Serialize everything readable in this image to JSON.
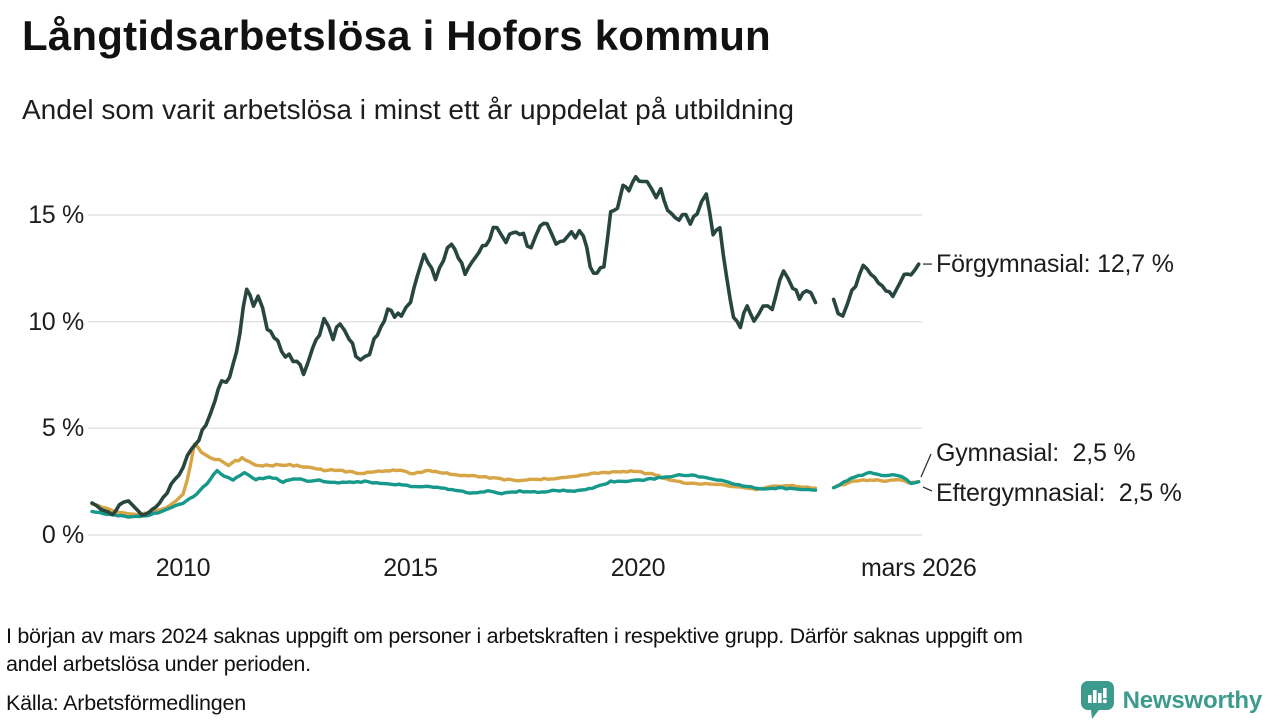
{
  "header": {
    "title": "Långtidsarbetslösa i Hofors kommun",
    "subtitle": "Andel som varit arbetslösa i minst ett år uppdelat på utbildning"
  },
  "footer": {
    "note_line1": "I början av mars 2024 saknas uppgift om personer i arbetskraften i respektive grupp. Därför saknas uppgift om",
    "note_line2": "andel arbetslösa under perioden.",
    "source": "Källa: Arbetsförmedlingen",
    "brand": {
      "name": "Newsworthy",
      "color": "#3d9b8e",
      "icon": "bar-chart-speech-bubble-icon"
    }
  },
  "chart_data": {
    "type": "line",
    "unit": "%",
    "grid": true,
    "text_color": "#1d1d1d",
    "grid_color": "#e2e2e2",
    "leader_color": "#333333",
    "x_axis": {
      "range": [
        2007.95,
        2026.17
      ],
      "ticks": [
        {
          "x": 2010,
          "label": "2010"
        },
        {
          "x": 2015,
          "label": "2015"
        },
        {
          "x": 2020,
          "label": "2020"
        },
        {
          "x": 2026.17,
          "label": "mars 2026"
        }
      ]
    },
    "y_axis": {
      "range": [
        0,
        17.3
      ],
      "ticks": [
        {
          "v": 0,
          "label": "0 %"
        },
        {
          "v": 5,
          "label": "5 %"
        },
        {
          "v": 10,
          "label": "10 %"
        },
        {
          "v": 15,
          "label": "15 %"
        }
      ]
    },
    "data_gap_note": "no data early March 2024",
    "series": [
      {
        "name": "Gymnasial",
        "color": "#d7a545",
        "end_value_pct": 2.5,
        "end_label": "Gymnasial:  2,5 %",
        "jitter": 0.07,
        "points": [
          [
            2008,
            1.45
          ],
          [
            2008.3,
            1.25
          ],
          [
            2008.6,
            1.05
          ],
          [
            2009,
            0.95
          ],
          [
            2009.4,
            1.1
          ],
          [
            2009.7,
            1.35
          ],
          [
            2010,
            1.9
          ],
          [
            2010.1,
            2.6
          ],
          [
            2010.25,
            4.3
          ],
          [
            2010.4,
            3.9
          ],
          [
            2010.6,
            3.6
          ],
          [
            2010.8,
            3.5
          ],
          [
            2011,
            3.3
          ],
          [
            2011.3,
            3.6
          ],
          [
            2011.6,
            3.3
          ],
          [
            2011.9,
            3.25
          ],
          [
            2012.2,
            3.3
          ],
          [
            2012.5,
            3.25
          ],
          [
            2012.8,
            3.15
          ],
          [
            2013.1,
            3.05
          ],
          [
            2013.5,
            3.0
          ],
          [
            2013.9,
            2.9
          ],
          [
            2014.3,
            3.0
          ],
          [
            2014.7,
            3.05
          ],
          [
            2015,
            2.9
          ],
          [
            2015.4,
            3.0
          ],
          [
            2015.8,
            2.9
          ],
          [
            2016.1,
            2.8
          ],
          [
            2016.5,
            2.75
          ],
          [
            2016.9,
            2.65
          ],
          [
            2017.3,
            2.55
          ],
          [
            2017.7,
            2.6
          ],
          [
            2018.1,
            2.65
          ],
          [
            2018.5,
            2.75
          ],
          [
            2018.9,
            2.85
          ],
          [
            2019.2,
            2.9
          ],
          [
            2019.6,
            3.0
          ],
          [
            2020,
            2.95
          ],
          [
            2020.3,
            2.85
          ],
          [
            2020.7,
            2.6
          ],
          [
            2021,
            2.45
          ],
          [
            2021.4,
            2.4
          ],
          [
            2021.8,
            2.35
          ],
          [
            2022.2,
            2.25
          ],
          [
            2022.6,
            2.15
          ],
          [
            2023,
            2.3
          ],
          [
            2023.4,
            2.3
          ],
          [
            2023.9,
            2.2
          ],
          [
            2024.05,
            null
          ],
          [
            2024.3,
            2.25
          ],
          [
            2024.55,
            2.4
          ],
          [
            2024.8,
            2.55
          ],
          [
            2025.1,
            2.6
          ],
          [
            2025.4,
            2.55
          ],
          [
            2025.7,
            2.6
          ],
          [
            2025.95,
            2.45
          ],
          [
            2026.17,
            2.5
          ]
        ]
      },
      {
        "name": "Eftergymnasial",
        "color": "#16998a",
        "end_value_pct": 2.5,
        "end_label": "Eftergymnasial:  2,5 %",
        "jitter": 0.07,
        "points": [
          [
            2008,
            1.1
          ],
          [
            2008.4,
            0.95
          ],
          [
            2008.8,
            0.85
          ],
          [
            2009.2,
            0.9
          ],
          [
            2009.6,
            1.15
          ],
          [
            2010,
            1.5
          ],
          [
            2010.3,
            1.9
          ],
          [
            2010.6,
            2.6
          ],
          [
            2010.75,
            3.05
          ],
          [
            2010.9,
            2.75
          ],
          [
            2011.1,
            2.6
          ],
          [
            2011.35,
            2.9
          ],
          [
            2011.6,
            2.6
          ],
          [
            2011.9,
            2.75
          ],
          [
            2012.2,
            2.5
          ],
          [
            2012.5,
            2.65
          ],
          [
            2012.8,
            2.5
          ],
          [
            2013,
            2.55
          ],
          [
            2013.5,
            2.45
          ],
          [
            2014,
            2.5
          ],
          [
            2014.5,
            2.4
          ],
          [
            2015,
            2.3
          ],
          [
            2015.5,
            2.25
          ],
          [
            2016,
            2.1
          ],
          [
            2016.3,
            1.95
          ],
          [
            2016.7,
            2.05
          ],
          [
            2017,
            1.95
          ],
          [
            2017.4,
            2.05
          ],
          [
            2017.8,
            2.0
          ],
          [
            2018.2,
            2.1
          ],
          [
            2018.6,
            2.05
          ],
          [
            2019,
            2.2
          ],
          [
            2019.4,
            2.5
          ],
          [
            2019.8,
            2.55
          ],
          [
            2020.2,
            2.6
          ],
          [
            2020.6,
            2.7
          ],
          [
            2020.9,
            2.85
          ],
          [
            2021.1,
            2.8
          ],
          [
            2021.5,
            2.7
          ],
          [
            2021.9,
            2.5
          ],
          [
            2022.3,
            2.3
          ],
          [
            2022.75,
            2.15
          ],
          [
            2023.1,
            2.2
          ],
          [
            2023.5,
            2.15
          ],
          [
            2023.9,
            2.1
          ],
          [
            2024.05,
            null
          ],
          [
            2024.3,
            2.2
          ],
          [
            2024.6,
            2.55
          ],
          [
            2024.85,
            2.8
          ],
          [
            2025.1,
            2.9
          ],
          [
            2025.35,
            2.8
          ],
          [
            2025.6,
            2.85
          ],
          [
            2025.8,
            2.75
          ],
          [
            2026,
            2.4
          ],
          [
            2026.17,
            2.5
          ]
        ]
      },
      {
        "name": "Förgymnasial",
        "color": "#27463f",
        "end_value_pct": 12.7,
        "end_label": "Förgymnasial: 12,7 %",
        "jitter": 0.2,
        "points": [
          [
            2008,
            1.5
          ],
          [
            2008.2,
            1.2
          ],
          [
            2008.45,
            1.0
          ],
          [
            2008.6,
            1.4
          ],
          [
            2008.8,
            1.6
          ],
          [
            2009.1,
            0.9
          ],
          [
            2009.4,
            1.3
          ],
          [
            2009.65,
            2.0
          ],
          [
            2010,
            3.2
          ],
          [
            2010.2,
            4.0
          ],
          [
            2010.5,
            5.1
          ],
          [
            2010.7,
            6.3
          ],
          [
            2010.85,
            7.4
          ],
          [
            2010.95,
            7.0
          ],
          [
            2011.1,
            7.9
          ],
          [
            2011.25,
            9.5
          ],
          [
            2011.4,
            11.5
          ],
          [
            2011.55,
            10.7
          ],
          [
            2011.65,
            11.3
          ],
          [
            2011.85,
            9.8
          ],
          [
            2012,
            9.3
          ],
          [
            2012.25,
            8.5
          ],
          [
            2012.5,
            8.0
          ],
          [
            2012.65,
            7.6
          ],
          [
            2012.85,
            8.8
          ],
          [
            2013,
            9.5
          ],
          [
            2013.1,
            10.1
          ],
          [
            2013.3,
            9.3
          ],
          [
            2013.45,
            9.9
          ],
          [
            2013.65,
            9.1
          ],
          [
            2013.8,
            8.5
          ],
          [
            2014,
            8.2
          ],
          [
            2014.2,
            9.1
          ],
          [
            2014.5,
            10.6
          ],
          [
            2014.8,
            10.2
          ],
          [
            2015,
            11.0
          ],
          [
            2015.3,
            13.3
          ],
          [
            2015.55,
            12.1
          ],
          [
            2015.9,
            13.7
          ],
          [
            2016.2,
            12.4
          ],
          [
            2016.5,
            13.1
          ],
          [
            2016.9,
            14.6
          ],
          [
            2017.1,
            13.8
          ],
          [
            2017.4,
            14.2
          ],
          [
            2017.65,
            13.5
          ],
          [
            2017.85,
            14.6
          ],
          [
            2018,
            14.4
          ],
          [
            2018.2,
            13.6
          ],
          [
            2018.45,
            14.0
          ],
          [
            2018.8,
            14.2
          ],
          [
            2018.95,
            12.5
          ],
          [
            2019.1,
            12.2
          ],
          [
            2019.25,
            12.7
          ],
          [
            2019.4,
            15.0
          ],
          [
            2019.55,
            15.3
          ],
          [
            2019.67,
            16.3
          ],
          [
            2019.8,
            16.0
          ],
          [
            2019.95,
            16.9
          ],
          [
            2020.1,
            16.4
          ],
          [
            2020.2,
            16.7
          ],
          [
            2020.4,
            15.9
          ],
          [
            2020.5,
            16.2
          ],
          [
            2020.65,
            15.4
          ],
          [
            2020.9,
            14.8
          ],
          [
            2021.05,
            15.0
          ],
          [
            2021.15,
            14.5
          ],
          [
            2021.3,
            15.2
          ],
          [
            2021.5,
            15.8
          ],
          [
            2021.65,
            14.1
          ],
          [
            2021.8,
            14.3
          ],
          [
            2021.95,
            12.0
          ],
          [
            2022.1,
            10.3
          ],
          [
            2022.25,
            9.9
          ],
          [
            2022.4,
            10.6
          ],
          [
            2022.55,
            10.2
          ],
          [
            2022.75,
            10.9
          ],
          [
            2022.95,
            10.7
          ],
          [
            2023.2,
            12.5
          ],
          [
            2023.4,
            11.6
          ],
          [
            2023.55,
            11.1
          ],
          [
            2023.7,
            11.5
          ],
          [
            2023.9,
            10.9
          ],
          [
            2024.05,
            null
          ],
          [
            2024.3,
            10.9
          ],
          [
            2024.5,
            10.1
          ],
          [
            2024.7,
            11.3
          ],
          [
            2024.95,
            12.5
          ],
          [
            2025.2,
            11.9
          ],
          [
            2025.45,
            11.4
          ],
          [
            2025.6,
            11.2
          ],
          [
            2025.85,
            12.1
          ],
          [
            2026,
            12.3
          ],
          [
            2026.17,
            12.7
          ]
        ]
      }
    ]
  }
}
